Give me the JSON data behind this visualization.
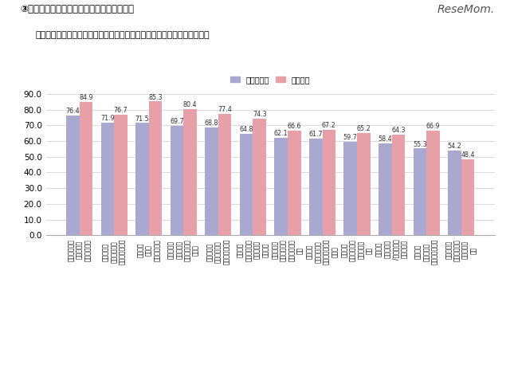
{
  "title_main": "③家庭学習で母親が意識的に行っていること",
  "title_sub": "図表２．家庭内学習において、意識的に行っていること（上位１２項目）",
  "legend_labels": [
    "共働き世帯",
    "主婦世帯"
  ],
  "categories": [
    "わが子の得意\n・不得意を\n把握している",
    "鉛筆の動き\nや文字の状態\nを確認している",
    "わが子の\n範囲を\n把握している",
    "学習をする\n場所は口が\n行き始く場所\nにする",
    "子どもから\n質問を受けた\n時はすぐに見る",
    "家庭での\n学習に費やす\n時間を把握\nしている",
    "学習をして\nいる際の集中\n力を確認して\nいる",
    "家庭での\n学習に取りか\nかるタイミング\nを把握",
    "家庭での\n学習に取りか\nかるまでの\n時間",
    "学習中の\n表情（楽々\n/元しそうな\nど）を確認",
    "この日に\nやった内容\nを終了後に確認",
    "怒るよりも\n励めることを\n大切にして\nいる"
  ],
  "values_kyodou": [
    76.4,
    71.9,
    71.5,
    69.7,
    68.8,
    64.8,
    62.1,
    61.7,
    59.7,
    58.4,
    55.3,
    54.2
  ],
  "values_shufu": [
    84.9,
    76.7,
    85.3,
    80.4,
    77.4,
    74.3,
    66.6,
    67.2,
    65.2,
    64.3,
    66.9,
    48.4
  ],
  "color_kyodou": "#a8a8d0",
  "color_shufu": "#e8a0a8",
  "ylim": [
    0.0,
    90.0
  ],
  "yticks": [
    0.0,
    10.0,
    20.0,
    30.0,
    40.0,
    50.0,
    60.0,
    70.0,
    80.0,
    90.0
  ],
  "background_color": "#ffffff",
  "grid_color": "#cccccc",
  "resemom_text": "ReseMom.",
  "value_fontsize": 5.8,
  "tick_fontsize": 7.5,
  "label_fontsize": 5.5
}
